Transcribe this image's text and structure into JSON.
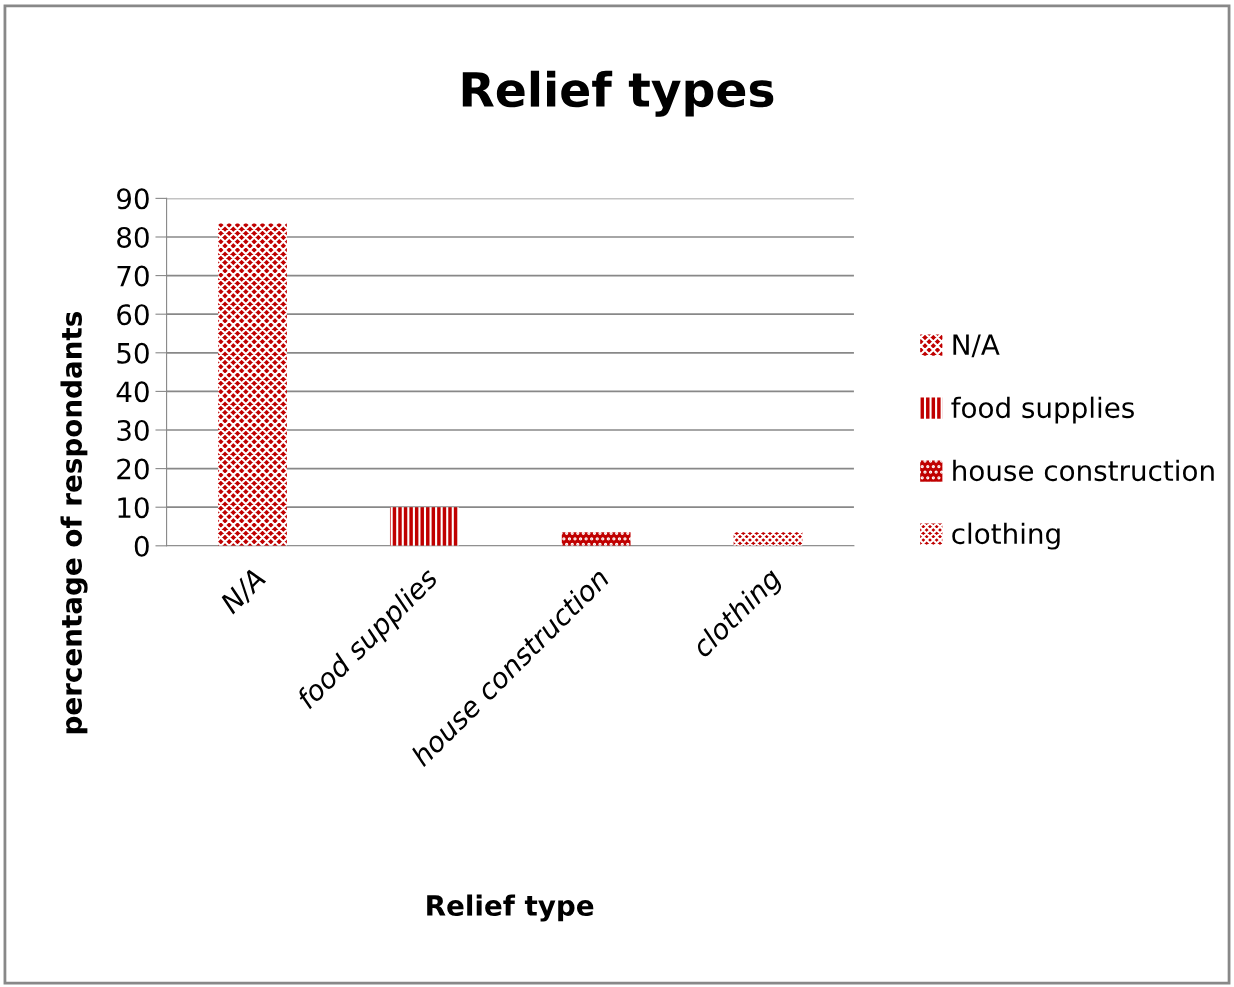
{
  "chart_data": {
    "type": "bar",
    "title": "Relief types",
    "xlabel": "Relief type",
    "ylabel": "percentage of respondants",
    "categories": [
      "N/A",
      "food supplies",
      "house construction",
      "clothing"
    ],
    "series": [
      {
        "name": "N/A",
        "color": "#c00000",
        "values": [
          83.5,
          null,
          null,
          null
        ]
      },
      {
        "name": "food supplies",
        "color": "#c00000",
        "values": [
          null,
          10,
          null,
          null
        ]
      },
      {
        "name": "house construction",
        "color": "#c00000",
        "values": [
          null,
          null,
          3.5,
          null
        ]
      },
      {
        "name": "clothing",
        "color": "#c00000",
        "values": [
          null,
          null,
          null,
          3.5
        ]
      }
    ],
    "ylim": [
      0,
      90
    ],
    "yticks": [
      0,
      10,
      20,
      30,
      40,
      50,
      60,
      70,
      80,
      90
    ],
    "grid": "y",
    "legend": "right"
  }
}
